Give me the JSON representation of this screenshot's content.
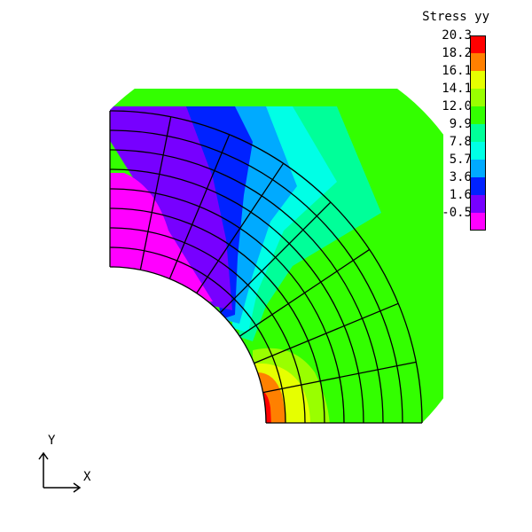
{
  "legend": {
    "title": "Stress yy",
    "levels": [
      {
        "value": "20.3",
        "color": "#ff0000"
      },
      {
        "value": "18.2",
        "color": "#ff8000"
      },
      {
        "value": "16.1",
        "color": "#e6ff00"
      },
      {
        "value": "14.1",
        "color": "#99ff00"
      },
      {
        "value": "12.0",
        "color": "#33ff00"
      },
      {
        "value": "9.9",
        "color": "#00ff99"
      },
      {
        "value": "7.8",
        "color": "#00ffe6"
      },
      {
        "value": "5.7",
        "color": "#00aaff"
      },
      {
        "value": "3.6",
        "color": "#0022ff"
      },
      {
        "value": "1.6",
        "color": "#7700ff"
      },
      {
        "value": "-0.5",
        "color": "#ff00ff"
      }
    ]
  },
  "axes": {
    "x_label": "X",
    "y_label": "Y"
  },
  "colors": {
    "mesh_line": "#000000",
    "background": "#ffffff"
  }
}
